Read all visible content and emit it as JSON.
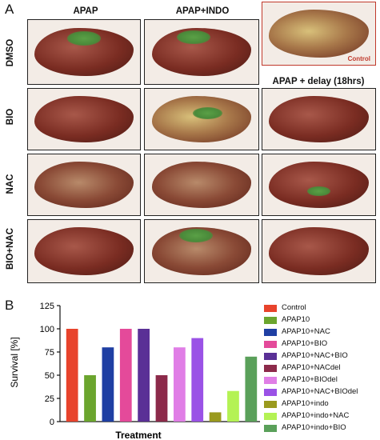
{
  "panel_a": {
    "letter": "A",
    "columns": [
      "APAP",
      "APAP+INDO"
    ],
    "delay_heading": "APAP + delay (18hrs)",
    "rows": [
      "DMSO",
      "BIO",
      "NAC",
      "BIO+NAC"
    ],
    "control_label": "Control"
  },
  "panel_b": {
    "letter": "B"
  },
  "chart_data": {
    "type": "bar",
    "categories": [
      "Control",
      "APAP10",
      "APAP10+NAC",
      "APAP10+BIO",
      "APAP10+NAC+BIO",
      "APAP10+NACdel",
      "APAP10+BIOdel",
      "APAP10+NAC+BIOdel",
      "APAP10+indo",
      "APAP10+indo+NAC",
      "APAP10+indo+BIO"
    ],
    "values": [
      100,
      50,
      80,
      100,
      100,
      50,
      80,
      90,
      10,
      33,
      70
    ],
    "colors": [
      "#e8432c",
      "#6ba52e",
      "#1f3fa3",
      "#e44a9a",
      "#5a3096",
      "#8c2a4a",
      "#e07ee6",
      "#9a52e6",
      "#9a9a1e",
      "#b4f254",
      "#5aa05a"
    ],
    "xlabel": "Treatment",
    "ylabel": "Survival [%]",
    "ylim": [
      0,
      125
    ],
    "yticks": [
      "0",
      "25",
      "50",
      "75",
      "100",
      "125"
    ],
    "legend_position": "right",
    "grid": false
  }
}
